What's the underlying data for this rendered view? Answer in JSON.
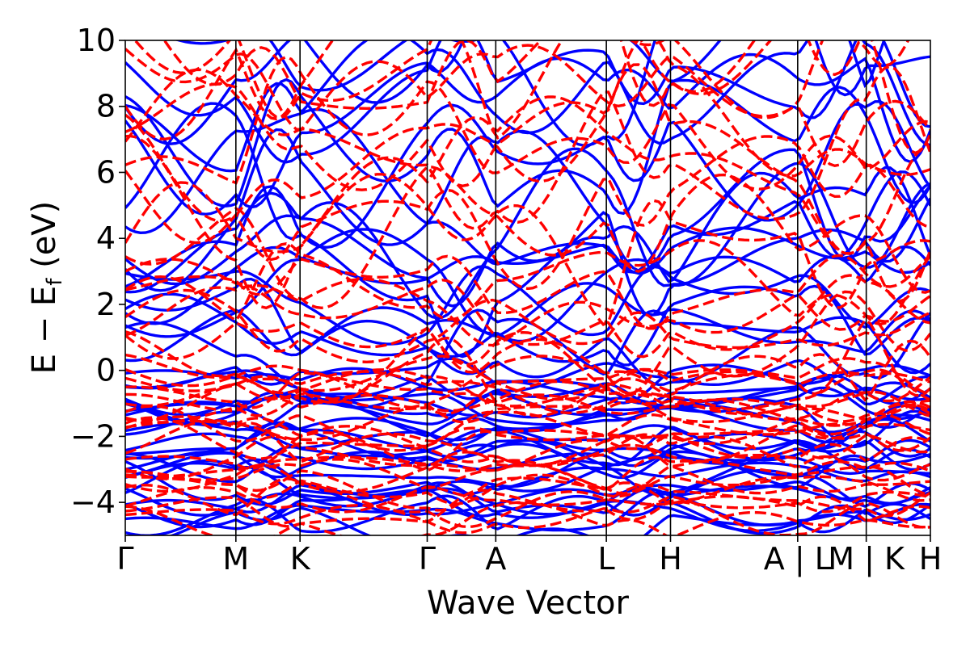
{
  "chart_data": {
    "type": "line",
    "title": "",
    "xlabel": "Wave Vector",
    "ylabel": {
      "main": "E − E",
      "subscript": "f",
      "unit": " (eV)"
    },
    "ylim": [
      -5,
      10
    ],
    "yticks": [
      -4,
      -2,
      0,
      2,
      4,
      6,
      8,
      10
    ],
    "ytick_labels": [
      "−4",
      "−2",
      "0",
      "2",
      "4",
      "6",
      "8",
      "10"
    ],
    "kpath": {
      "segment_lengths": [
        1.0,
        0.58,
        1.15,
        0.62,
        1.0,
        0.58,
        1.15,
        0.62,
        0.58
      ],
      "labels": [
        "Γ",
        "M",
        "K",
        "Γ",
        "A",
        "L",
        "H",
        "A | L",
        "M | K",
        "H"
      ]
    },
    "series": [
      {
        "style": "solid",
        "color": "#0000ff",
        "band_count": 44
      },
      {
        "style": "dashed",
        "color": "#ff0000",
        "band_count": 44
      }
    ],
    "grid": false,
    "legend": "none"
  }
}
